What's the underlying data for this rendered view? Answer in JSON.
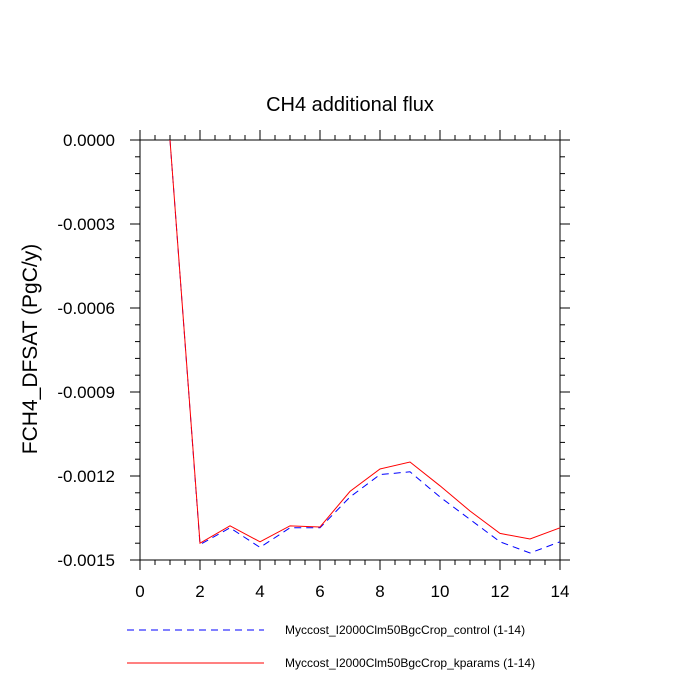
{
  "chart_data": {
    "type": "line",
    "title": "CH4 additional flux",
    "xlabel": "",
    "ylabel": "FCH4_DFSAT  (PgC/y)",
    "xlim": [
      0,
      14
    ],
    "ylim": [
      -0.0015,
      0.0
    ],
    "x_ticks": [
      0,
      2,
      4,
      6,
      8,
      10,
      12,
      14
    ],
    "x_tick_labels": [
      "0",
      "2",
      "4",
      "6",
      "8",
      "10",
      "12",
      "14"
    ],
    "y_ticks": [
      0.0,
      -0.0003,
      -0.0006,
      -0.0009,
      -0.0012,
      -0.0015
    ],
    "y_tick_labels": [
      "0.0000",
      "-0.0003",
      "-0.0006",
      "-0.0009",
      "-0.0012",
      "-0.0015"
    ],
    "grid": false,
    "legend_position": "bottom",
    "x": [
      1,
      2,
      3,
      4,
      5,
      6,
      7,
      8,
      9,
      10,
      11,
      12,
      13,
      14
    ],
    "series": [
      {
        "name": "Myccost_I2000Clm50BgcCrop_control (1-14)",
        "color": "#0000ff",
        "style": "dashed",
        "values": [
          0.0,
          -0.001445,
          -0.001385,
          -0.001455,
          -0.001385,
          -0.001385,
          -0.001275,
          -0.001195,
          -0.001185,
          -0.001275,
          -0.001355,
          -0.001435,
          -0.001475,
          -0.001435
        ]
      },
      {
        "name": "Myccost_I2000Clm50BgcCrop_kparams (1-14)",
        "color": "#ff0000",
        "style": "solid",
        "values": [
          0.0,
          -0.00144,
          -0.001378,
          -0.001435,
          -0.001378,
          -0.001382,
          -0.001255,
          -0.001175,
          -0.00115,
          -0.001235,
          -0.001325,
          -0.001405,
          -0.001425,
          -0.001385
        ]
      }
    ]
  }
}
